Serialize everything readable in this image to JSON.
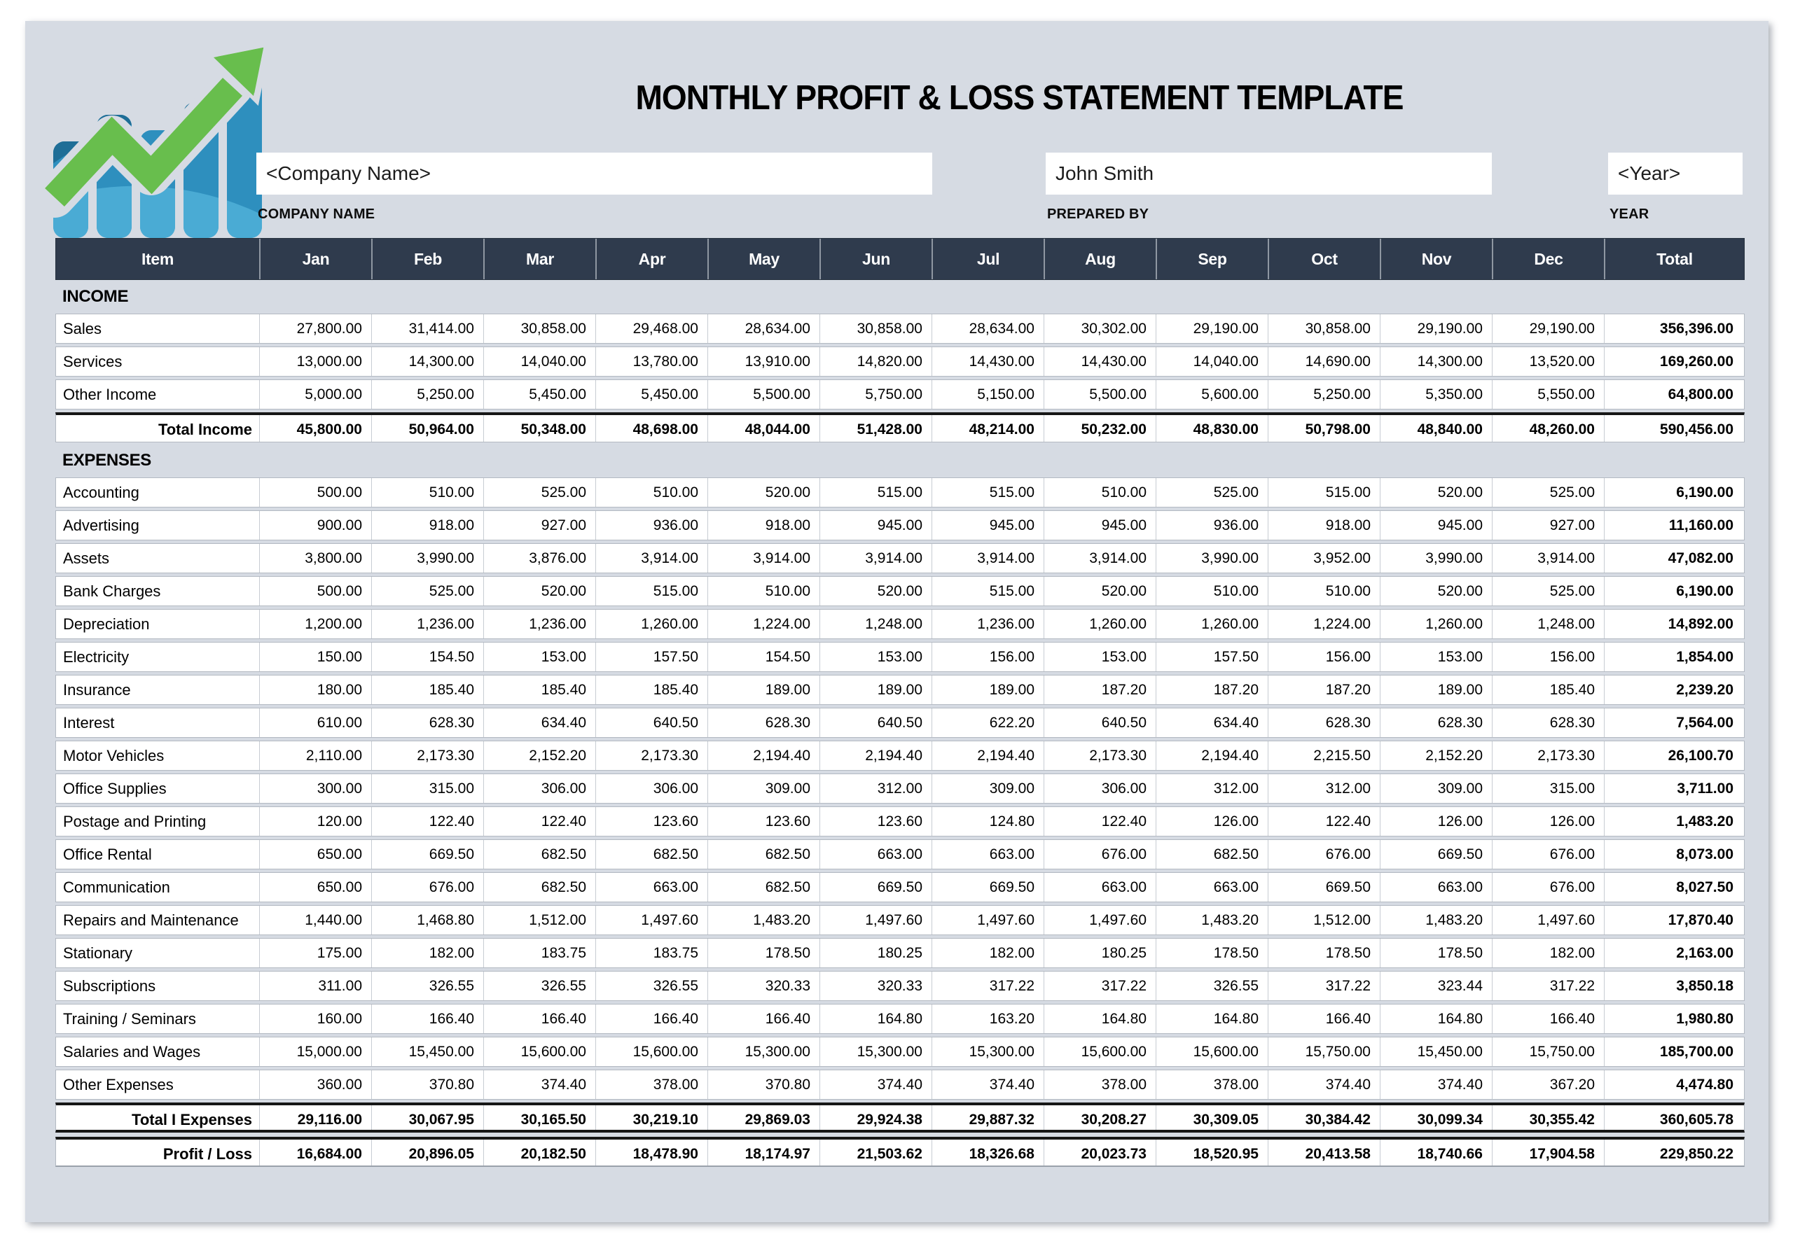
{
  "title": "MONTHLY PROFIT & LOSS STATEMENT TEMPLATE",
  "fields": {
    "company": {
      "value": "<Company Name>",
      "label": "COMPANY NAME"
    },
    "prepared": {
      "value": "John Smith",
      "label": "PREPARED BY"
    },
    "year": {
      "value": "<Year>",
      "label": "YEAR"
    }
  },
  "logo": {
    "icon": "growth-bar-chart-with-arrow",
    "arrow_green": "#68BE4D",
    "bar_blue": "#2E8FBE",
    "bar_blue_dark": "#1F6E97",
    "bar_blue_light": "#4FB0D8"
  },
  "colors": {
    "page_bg": "#D6DBE3",
    "header_bg": "#2F3B4D",
    "header_text": "#FFFFFF",
    "row_bg": "#FFFFFF",
    "row_border": "#B3B9C2",
    "thick_rule": "#161616"
  },
  "table": {
    "columns": [
      "Item",
      "Jan",
      "Feb",
      "Mar",
      "Apr",
      "May",
      "Jun",
      "Jul",
      "Aug",
      "Sep",
      "Oct",
      "Nov",
      "Dec",
      "Total"
    ],
    "sections": [
      {
        "name": "INCOME",
        "rows": [
          {
            "label": "Sales",
            "values": [
              "27,800.00",
              "31,414.00",
              "30,858.00",
              "29,468.00",
              "28,634.00",
              "30,858.00",
              "28,634.00",
              "30,302.00",
              "29,190.00",
              "30,858.00",
              "29,190.00",
              "29,190.00",
              "356,396.00"
            ]
          },
          {
            "label": "Services",
            "values": [
              "13,000.00",
              "14,300.00",
              "14,040.00",
              "13,780.00",
              "13,910.00",
              "14,820.00",
              "14,430.00",
              "14,430.00",
              "14,040.00",
              "14,690.00",
              "14,300.00",
              "13,520.00",
              "169,260.00"
            ]
          },
          {
            "label": "Other Income",
            "values": [
              "5,000.00",
              "5,250.00",
              "5,450.00",
              "5,450.00",
              "5,500.00",
              "5,750.00",
              "5,150.00",
              "5,500.00",
              "5,600.00",
              "5,250.00",
              "5,350.00",
              "5,550.00",
              "64,800.00"
            ]
          }
        ],
        "total": {
          "label": "Total Income",
          "values": [
            "45,800.00",
            "50,964.00",
            "50,348.00",
            "48,698.00",
            "48,044.00",
            "51,428.00",
            "48,214.00",
            "50,232.00",
            "48,830.00",
            "50,798.00",
            "48,840.00",
            "48,260.00",
            "590,456.00"
          ]
        }
      },
      {
        "name": "EXPENSES",
        "rows": [
          {
            "label": "Accounting",
            "values": [
              "500.00",
              "510.00",
              "525.00",
              "510.00",
              "520.00",
              "515.00",
              "515.00",
              "510.00",
              "525.00",
              "515.00",
              "520.00",
              "525.00",
              "6,190.00"
            ]
          },
          {
            "label": "Advertising",
            "values": [
              "900.00",
              "918.00",
              "927.00",
              "936.00",
              "918.00",
              "945.00",
              "945.00",
              "945.00",
              "936.00",
              "918.00",
              "945.00",
              "927.00",
              "11,160.00"
            ]
          },
          {
            "label": "Assets",
            "values": [
              "3,800.00",
              "3,990.00",
              "3,876.00",
              "3,914.00",
              "3,914.00",
              "3,914.00",
              "3,914.00",
              "3,914.00",
              "3,990.00",
              "3,952.00",
              "3,990.00",
              "3,914.00",
              "47,082.00"
            ]
          },
          {
            "label": "Bank Charges",
            "values": [
              "500.00",
              "525.00",
              "520.00",
              "515.00",
              "510.00",
              "520.00",
              "515.00",
              "520.00",
              "510.00",
              "510.00",
              "520.00",
              "525.00",
              "6,190.00"
            ]
          },
          {
            "label": "Depreciation",
            "values": [
              "1,200.00",
              "1,236.00",
              "1,236.00",
              "1,260.00",
              "1,224.00",
              "1,248.00",
              "1,236.00",
              "1,260.00",
              "1,260.00",
              "1,224.00",
              "1,260.00",
              "1,248.00",
              "14,892.00"
            ]
          },
          {
            "label": "Electricity",
            "values": [
              "150.00",
              "154.50",
              "153.00",
              "157.50",
              "154.50",
              "153.00",
              "156.00",
              "153.00",
              "157.50",
              "156.00",
              "153.00",
              "156.00",
              "1,854.00"
            ]
          },
          {
            "label": "Insurance",
            "values": [
              "180.00",
              "185.40",
              "185.40",
              "185.40",
              "189.00",
              "189.00",
              "189.00",
              "187.20",
              "187.20",
              "187.20",
              "189.00",
              "185.40",
              "2,239.20"
            ]
          },
          {
            "label": "Interest",
            "values": [
              "610.00",
              "628.30",
              "634.40",
              "640.50",
              "628.30",
              "640.50",
              "622.20",
              "640.50",
              "634.40",
              "628.30",
              "628.30",
              "628.30",
              "7,564.00"
            ]
          },
          {
            "label": "Motor Vehicles",
            "values": [
              "2,110.00",
              "2,173.30",
              "2,152.20",
              "2,173.30",
              "2,194.40",
              "2,194.40",
              "2,194.40",
              "2,173.30",
              "2,194.40",
              "2,215.50",
              "2,152.20",
              "2,173.30",
              "26,100.70"
            ]
          },
          {
            "label": "Office Supplies",
            "values": [
              "300.00",
              "315.00",
              "306.00",
              "306.00",
              "309.00",
              "312.00",
              "309.00",
              "306.00",
              "312.00",
              "312.00",
              "309.00",
              "315.00",
              "3,711.00"
            ]
          },
          {
            "label": "Postage and Printing",
            "values": [
              "120.00",
              "122.40",
              "122.40",
              "123.60",
              "123.60",
              "123.60",
              "124.80",
              "122.40",
              "126.00",
              "122.40",
              "126.00",
              "126.00",
              "1,483.20"
            ]
          },
          {
            "label": "Office Rental",
            "values": [
              "650.00",
              "669.50",
              "682.50",
              "682.50",
              "682.50",
              "663.00",
              "663.00",
              "676.00",
              "682.50",
              "676.00",
              "669.50",
              "676.00",
              "8,073.00"
            ]
          },
          {
            "label": "Communication",
            "values": [
              "650.00",
              "676.00",
              "682.50",
              "663.00",
              "682.50",
              "669.50",
              "669.50",
              "663.00",
              "663.00",
              "669.50",
              "663.00",
              "676.00",
              "8,027.50"
            ]
          },
          {
            "label": "Repairs and Maintenance",
            "values": [
              "1,440.00",
              "1,468.80",
              "1,512.00",
              "1,497.60",
              "1,483.20",
              "1,497.60",
              "1,497.60",
              "1,497.60",
              "1,483.20",
              "1,512.00",
              "1,483.20",
              "1,497.60",
              "17,870.40"
            ]
          },
          {
            "label": "Stationary",
            "values": [
              "175.00",
              "182.00",
              "183.75",
              "183.75",
              "178.50",
              "180.25",
              "182.00",
              "180.25",
              "178.50",
              "178.50",
              "178.50",
              "182.00",
              "2,163.00"
            ]
          },
          {
            "label": "Subscriptions",
            "values": [
              "311.00",
              "326.55",
              "326.55",
              "326.55",
              "320.33",
              "320.33",
              "317.22",
              "317.22",
              "326.55",
              "317.22",
              "323.44",
              "317.22",
              "3,850.18"
            ]
          },
          {
            "label": "Training / Seminars",
            "values": [
              "160.00",
              "166.40",
              "166.40",
              "166.40",
              "166.40",
              "164.80",
              "163.20",
              "164.80",
              "164.80",
              "166.40",
              "164.80",
              "166.40",
              "1,980.80"
            ]
          },
          {
            "label": "Salaries and Wages",
            "values": [
              "15,000.00",
              "15,450.00",
              "15,600.00",
              "15,600.00",
              "15,300.00",
              "15,300.00",
              "15,300.00",
              "15,600.00",
              "15,600.00",
              "15,750.00",
              "15,450.00",
              "15,750.00",
              "185,700.00"
            ]
          },
          {
            "label": "Other Expenses",
            "values": [
              "360.00",
              "370.80",
              "374.40",
              "378.00",
              "370.80",
              "374.40",
              "374.40",
              "378.00",
              "378.00",
              "374.40",
              "374.40",
              "367.20",
              "4,474.80"
            ]
          }
        ],
        "total": {
          "label": "Total I Expenses",
          "values": [
            "29,116.00",
            "30,067.95",
            "30,165.50",
            "30,219.10",
            "29,869.03",
            "29,924.38",
            "29,887.32",
            "30,208.27",
            "30,309.05",
            "30,384.42",
            "30,099.34",
            "30,355.42",
            "360,605.78"
          ]
        }
      }
    ],
    "profit": {
      "label": "Profit / Loss",
      "values": [
        "16,684.00",
        "20,896.05",
        "20,182.50",
        "18,478.90",
        "18,174.97",
        "21,503.62",
        "18,326.68",
        "20,023.73",
        "18,520.95",
        "20,413.58",
        "18,740.66",
        "17,904.58",
        "229,850.22"
      ]
    }
  }
}
